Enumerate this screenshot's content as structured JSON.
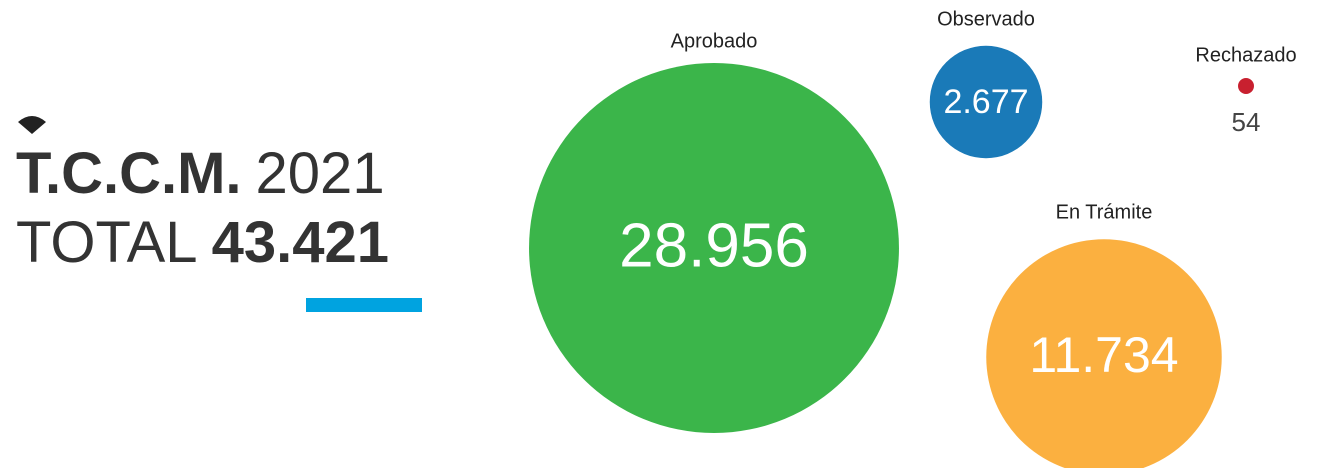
{
  "chart_data": {
    "type": "bubble",
    "title": "T.C.C.M.",
    "year": "2021",
    "total_label": "TOTAL",
    "total": {
      "value": 43421,
      "label": "43.421"
    },
    "categories": [
      "Aprobado",
      "Observado",
      "En Trámite",
      "Rechazado"
    ],
    "values": [
      28956,
      2677,
      11734,
      54
    ],
    "value_labels": [
      "28.956",
      "2.677",
      "11.734",
      "54"
    ],
    "colors": [
      "#3bb54a",
      "#1a7ab8",
      "#fbb040",
      "#c8202f"
    ],
    "accent_color": "#00a3e0"
  }
}
